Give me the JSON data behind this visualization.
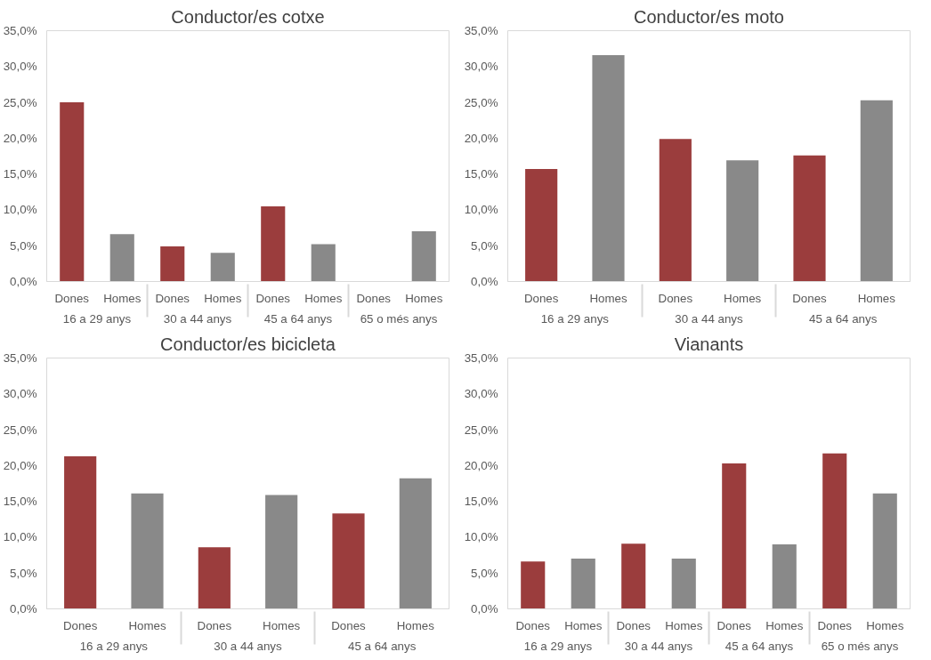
{
  "chart_data": [
    {
      "type": "bar",
      "title": "Conductor/es cotxe",
      "categories": [
        "16 a 29 anys",
        "30 a 44 anys",
        "45 a 64 anys",
        "65 o més anys"
      ],
      "series": [
        {
          "name": "Dones",
          "color": "#9b3d3d",
          "values": [
            25.0,
            4.9,
            10.5,
            0
          ]
        },
        {
          "name": "Homes",
          "color": "#898989",
          "values": [
            6.6,
            4.0,
            5.2,
            7.0
          ]
        }
      ],
      "ylim": [
        0,
        35
      ],
      "yticks": [
        {
          "value": 0,
          "label": "0,0%"
        },
        {
          "value": 5,
          "label": "5,0%"
        },
        {
          "value": 10,
          "label": "10,0%"
        },
        {
          "value": 15,
          "label": "15,0%"
        },
        {
          "value": 20,
          "label": "20,0%"
        },
        {
          "value": 25,
          "label": "25,0%"
        },
        {
          "value": 30,
          "label": "30,0%"
        },
        {
          "value": 35,
          "label": "35,0%"
        }
      ],
      "grid": false,
      "legend": false
    },
    {
      "type": "bar",
      "title": "Conductor/es moto",
      "categories": [
        "16 a 29 anys",
        "30 a 44 anys",
        "45 a 64 anys"
      ],
      "series": [
        {
          "name": "Dones",
          "color": "#9b3d3d",
          "values": [
            15.7,
            19.9,
            17.6
          ]
        },
        {
          "name": "Homes",
          "color": "#898989",
          "values": [
            31.6,
            16.9,
            25.3
          ]
        }
      ],
      "ylim": [
        0,
        35
      ],
      "yticks": [
        {
          "value": 0,
          "label": "0,0%"
        },
        {
          "value": 5,
          "label": "5,0%"
        },
        {
          "value": 10,
          "label": "10,0%"
        },
        {
          "value": 15,
          "label": "15,0%"
        },
        {
          "value": 20,
          "label": "20,0%"
        },
        {
          "value": 25,
          "label": "25,0%"
        },
        {
          "value": 30,
          "label": "30,0%"
        },
        {
          "value": 35,
          "label": "35,0%"
        }
      ],
      "grid": false,
      "legend": false
    },
    {
      "type": "bar",
      "title": "Conductor/es bicicleta",
      "categories": [
        "16 a 29 anys",
        "30 a 44 anys",
        "45 a 64 anys"
      ],
      "series": [
        {
          "name": "Dones",
          "color": "#9b3d3d",
          "values": [
            21.3,
            8.6,
            13.3
          ]
        },
        {
          "name": "Homes",
          "color": "#898989",
          "values": [
            16.1,
            15.9,
            18.2
          ]
        }
      ],
      "ylim": [
        0,
        35
      ],
      "yticks": [
        {
          "value": 0,
          "label": "0,0%"
        },
        {
          "value": 5,
          "label": "5,0%"
        },
        {
          "value": 10,
          "label": "10,0%"
        },
        {
          "value": 15,
          "label": "15,0%"
        },
        {
          "value": 20,
          "label": "20,0%"
        },
        {
          "value": 25,
          "label": "25,0%"
        },
        {
          "value": 30,
          "label": "30,0%"
        },
        {
          "value": 35,
          "label": "35,0%"
        }
      ],
      "grid": false,
      "legend": false
    },
    {
      "type": "bar",
      "title": "Vianants",
      "categories": [
        "16 a 29 anys",
        "30 a 44 anys",
        "45 a 64 anys",
        "65 o més anys"
      ],
      "series": [
        {
          "name": "Dones",
          "color": "#9b3d3d",
          "values": [
            6.6,
            9.1,
            20.3,
            21.7
          ]
        },
        {
          "name": "Homes",
          "color": "#898989",
          "values": [
            7.0,
            7.0,
            9.0,
            16.1
          ]
        }
      ],
      "ylim": [
        0,
        35
      ],
      "yticks": [
        {
          "value": 0,
          "label": "0,0%"
        },
        {
          "value": 5,
          "label": "5,0%"
        },
        {
          "value": 10,
          "label": "10,0%"
        },
        {
          "value": 15,
          "label": "15,0%"
        },
        {
          "value": 20,
          "label": "20,0%"
        },
        {
          "value": 25,
          "label": "25,0%"
        },
        {
          "value": 30,
          "label": "30,0%"
        },
        {
          "value": 35,
          "label": "35,0%"
        }
      ],
      "grid": false,
      "legend": false
    }
  ]
}
